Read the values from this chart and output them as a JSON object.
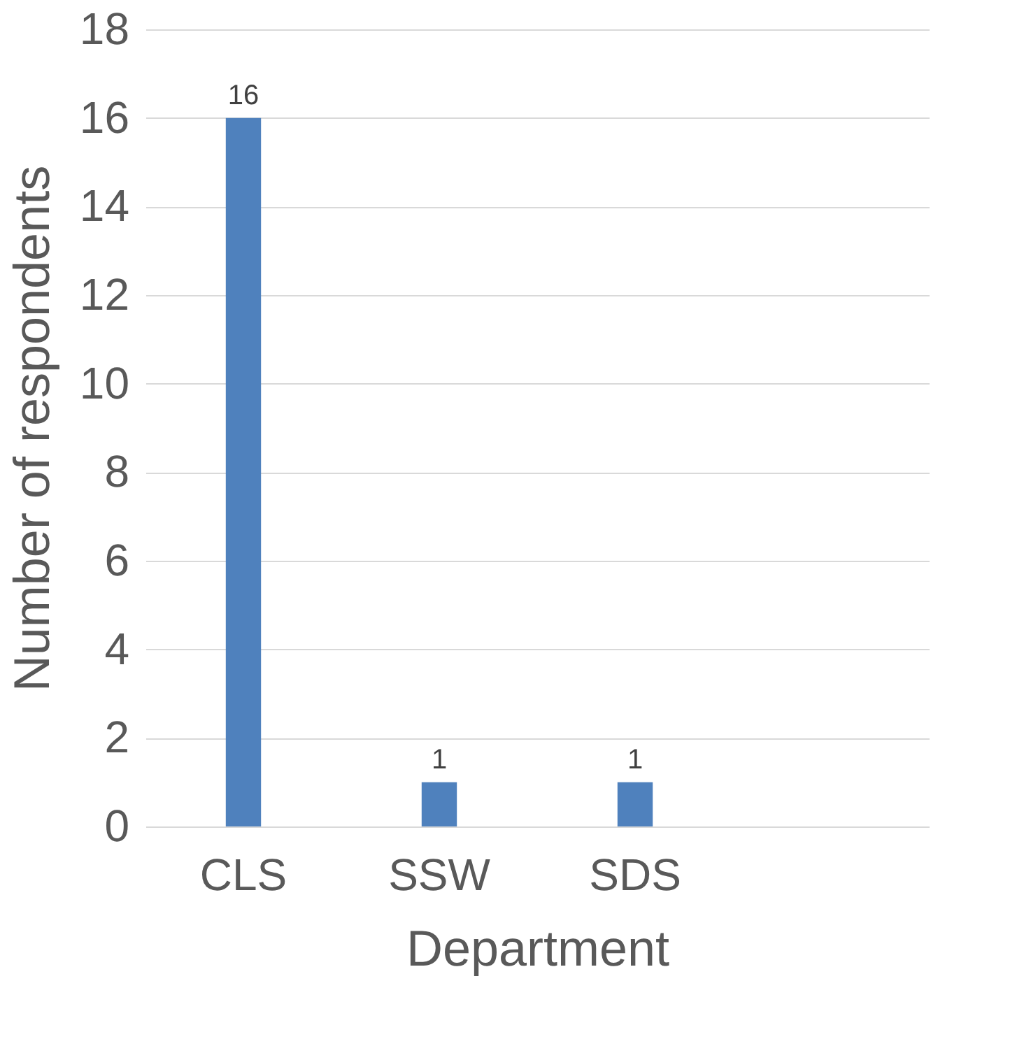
{
  "chart_data": {
    "type": "bar",
    "xlabel": "Department",
    "ylabel": "Number of respondents",
    "categories": [
      "CLS",
      "SSW",
      "SDS",
      null
    ],
    "values": [
      16,
      1,
      1,
      null
    ],
    "color": "#4f81bd",
    "ylim": [
      0,
      18
    ],
    "yticks": [
      0,
      2,
      4,
      6,
      8,
      10,
      12,
      14,
      16,
      18
    ],
    "grid": "y",
    "data_labels": true
  }
}
